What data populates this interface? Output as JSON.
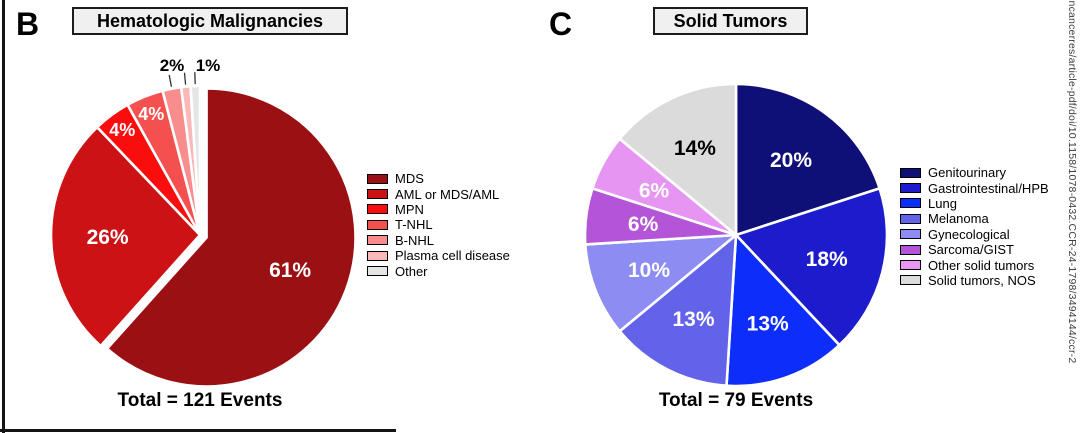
{
  "figure": {
    "panels": [
      {
        "letter": "B",
        "title": "Hematologic Malignancies",
        "caption": "Total = 121 Events"
      },
      {
        "letter": "C",
        "title": "Solid Tumors",
        "caption": "Total = 79 Events"
      }
    ],
    "watermark_text": "incancerres/article-pdf/doi/10.1158/1078-0432.CCR-24-1798/3494144/ccr-2"
  },
  "chart_data": [
    {
      "type": "pie",
      "panel": "B",
      "title": "Hematologic Malignancies",
      "total_events": 121,
      "total_label": "Total = 121 Events",
      "legend_position": "right",
      "start_angle_deg": 0,
      "direction": "clockwise",
      "slices": [
        {
          "label": "MDS",
          "value": 61,
          "display": "61%",
          "color": "#9B1013",
          "label_color": "#ffffff",
          "label_r_frac": 0.6,
          "exploded": true
        },
        {
          "label": "AML or MDS/AML",
          "value": 26,
          "display": "26%",
          "color": "#CC1214",
          "label_color": "#ffffff",
          "label_r_frac": 0.62
        },
        {
          "label": "MPN",
          "value": 4,
          "display": "4%",
          "color": "#F90D0D",
          "label_color": "#ffffff",
          "label_r_frac": 0.88
        },
        {
          "label": "T-NHL",
          "value": 4,
          "display": "4%",
          "color": "#F55050",
          "label_color": "#ffffff",
          "label_r_frac": 0.88
        },
        {
          "label": "B-NHL",
          "value": 2,
          "display": "2%",
          "color": "#F98C8C",
          "label_color": "#000000",
          "outside": true,
          "ext_label_pos": [
            132,
            16
          ]
        },
        {
          "label": "Plasma cell disease",
          "value": 1,
          "display": "",
          "color": "#FBB8B8",
          "label_color": "#000000",
          "outside": true,
          "ext_label_pos": null
        },
        {
          "label": "Other",
          "value": 1,
          "display": "1%",
          "color": "#E5E5E5",
          "label_color": "#000000",
          "outside": true,
          "ext_label_pos": [
            168,
            16
          ]
        }
      ]
    },
    {
      "type": "pie",
      "panel": "C",
      "title": "Solid Tumors",
      "total_events": 79,
      "total_label": "Total = 79 Events",
      "legend_position": "right",
      "start_angle_deg": 0,
      "direction": "clockwise",
      "slices": [
        {
          "label": "Genitourinary",
          "value": 20,
          "display": "20%",
          "color": "#0F0F78",
          "label_color": "#ffffff",
          "label_r_frac": 0.62
        },
        {
          "label": "Gastrointestinal/HPB",
          "value": 18,
          "display": "18%",
          "color": "#1C1CCC",
          "label_color": "#ffffff",
          "label_r_frac": 0.62
        },
        {
          "label": "Lung",
          "value": 13,
          "display": "13%",
          "color": "#0D2DFB",
          "label_color": "#ffffff",
          "label_r_frac": 0.62
        },
        {
          "label": "Melanoma",
          "value": 13,
          "display": "13%",
          "color": "#6363EA",
          "label_color": "#ffffff",
          "label_r_frac": 0.62
        },
        {
          "label": "Gynecological",
          "value": 10,
          "display": "10%",
          "color": "#8C8CF2",
          "label_color": "#ffffff",
          "label_r_frac": 0.62
        },
        {
          "label": "Sarcoma/GIST",
          "value": 6,
          "display": "6%",
          "color": "#B455D7",
          "label_color": "#ffffff",
          "label_r_frac": 0.62
        },
        {
          "label": "Other solid tumors",
          "value": 6,
          "display": "6%",
          "color": "#E795F3",
          "label_color": "#ffffff",
          "label_r_frac": 0.62
        },
        {
          "label": "Solid tumors, NOS",
          "value": 14,
          "display": "14%",
          "color": "#DBDBDB",
          "label_color": "#000000",
          "label_r_frac": 0.64
        }
      ]
    }
  ]
}
